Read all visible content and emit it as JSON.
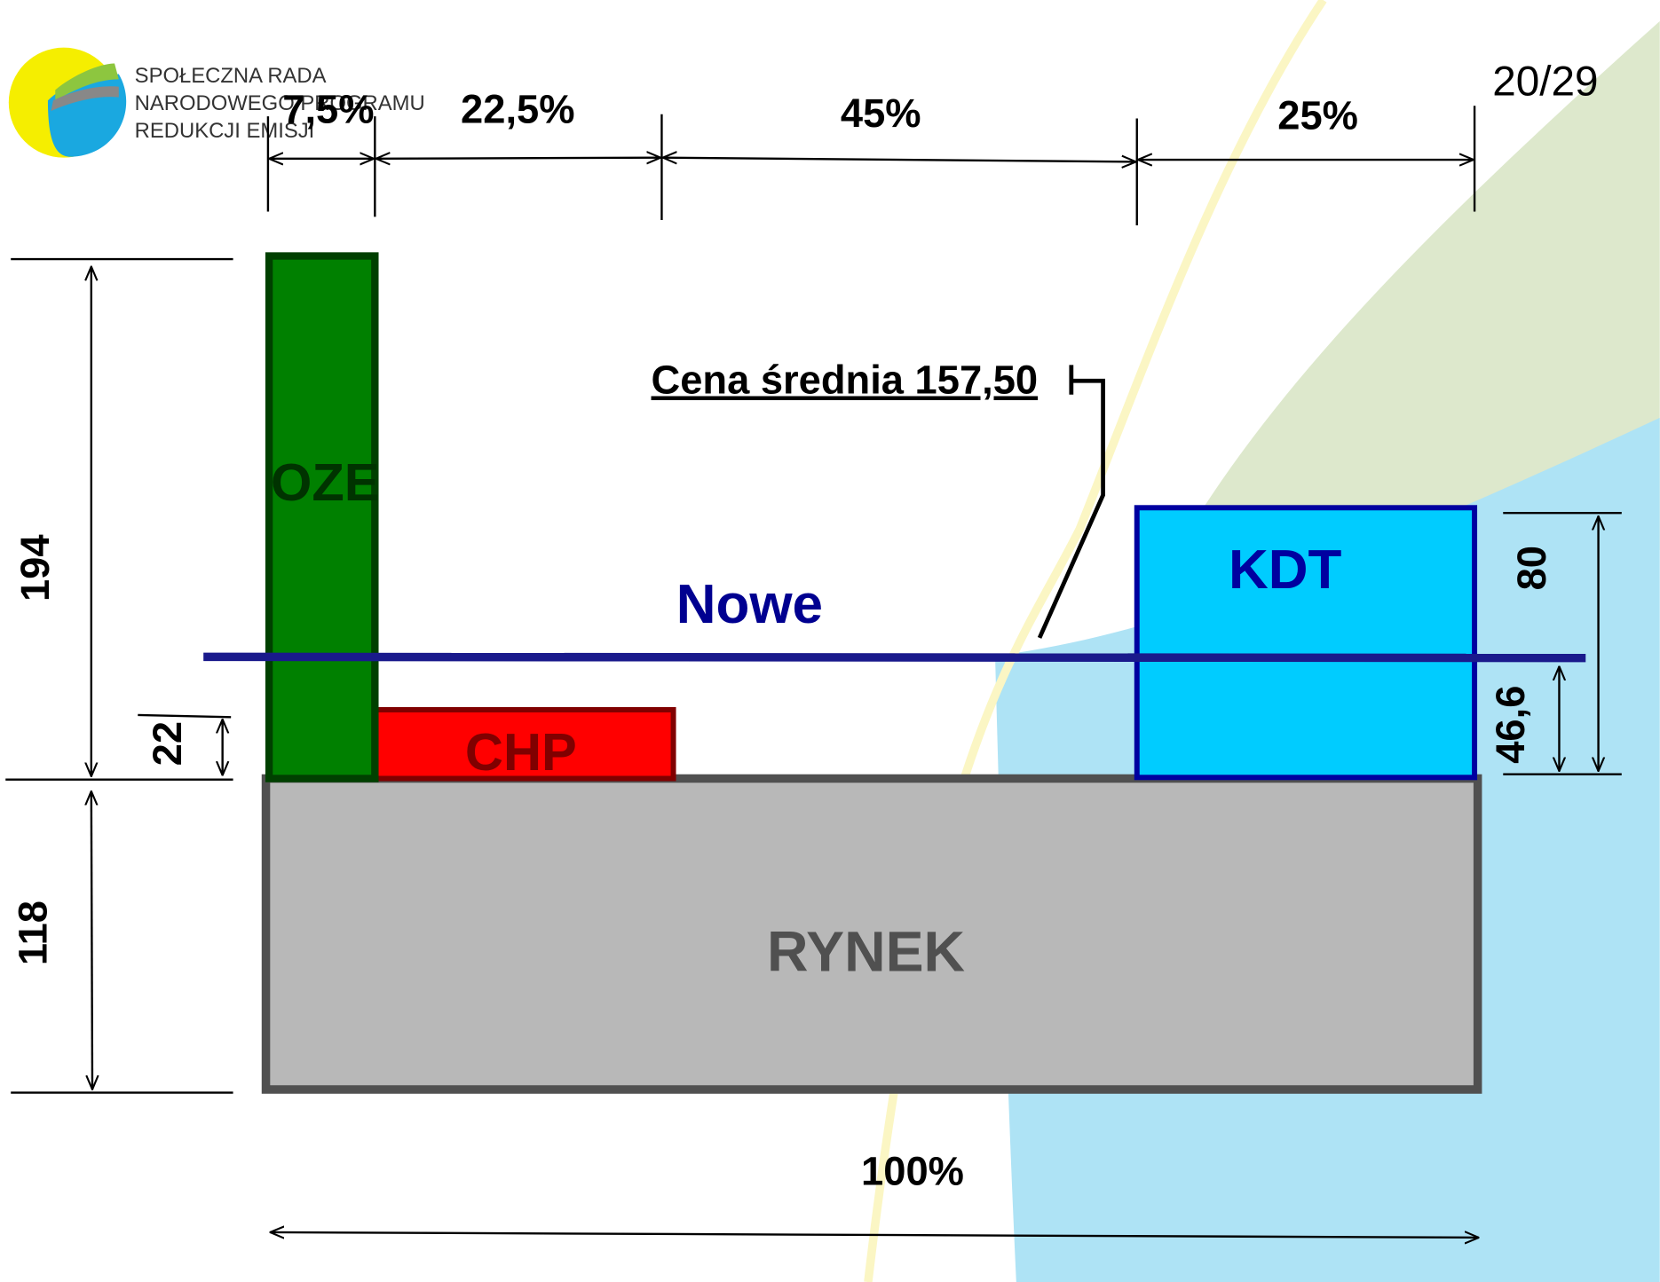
{
  "logo": {
    "lines": [
      "SPOŁECZNA RADA",
      "NARODOWEGO PROGRAMU",
      "REDUKCJI EMISJI"
    ]
  },
  "page_number": "20/29",
  "widths": {
    "oze": "7,5%",
    "chp": "22,5%",
    "nowe": "45%",
    "kdt": "25%",
    "total": "100%"
  },
  "heights": {
    "total": "194",
    "rynek": "118",
    "chp": "22",
    "kdt": "80",
    "nowe": "46,6"
  },
  "blocks": {
    "oze": "OZE",
    "chp": "CHP",
    "kdt": "KDT",
    "rynek": "RYNEK",
    "nowe": "Nowe"
  },
  "annotation": "Cena średnia 157,50"
}
